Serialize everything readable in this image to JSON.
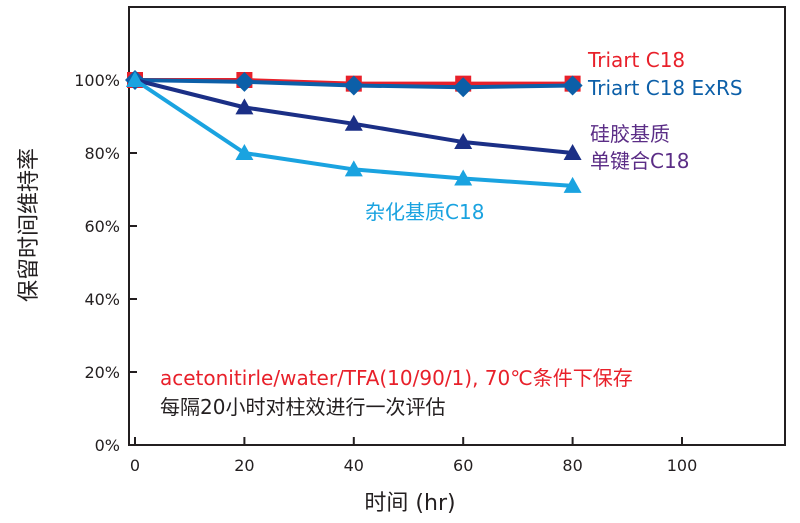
{
  "chart_data": {
    "type": "line",
    "title": "",
    "xlabel": "时间 (hr)",
    "ylabel": "保留时间维持率",
    "xlim": [
      0,
      120
    ],
    "ylim": [
      0,
      120
    ],
    "xticks": [
      0,
      20,
      40,
      60,
      80,
      100
    ],
    "xtick_labels": [
      "0",
      "20",
      "40",
      "60",
      "80",
      "100"
    ],
    "yticks": [
      0,
      20,
      40,
      60,
      80,
      100
    ],
    "ytick_labels": [
      "0%",
      "20%",
      "40%",
      "60%",
      "80%",
      "100%"
    ],
    "grid": false,
    "series": [
      {
        "name": "Triart C18",
        "label_lines": [
          "Triart C18"
        ],
        "color": "#e8202a",
        "marker": "square",
        "x": [
          0,
          20,
          40,
          60,
          80
        ],
        "values": [
          100,
          100,
          99,
          99,
          99
        ]
      },
      {
        "name": "Triart C18 ExRS",
        "label_lines": [
          "Triart C18 ExRS"
        ],
        "color": "#0c5fa8",
        "marker": "diamond",
        "x": [
          0,
          20,
          40,
          60,
          80
        ],
        "values": [
          100,
          99.5,
          98.5,
          98,
          98.5
        ]
      },
      {
        "name": "硅胶基质单键合C18",
        "label_lines": [
          "硅胶基质",
          "单键合C18"
        ],
        "color": "#1b2f86",
        "label_color": "#5b2d86",
        "marker": "triangle",
        "x": [
          0,
          20,
          40,
          60,
          80
        ],
        "values": [
          100,
          92.5,
          88,
          83,
          80
        ]
      },
      {
        "name": "杂化基质C18",
        "label_lines": [
          "杂化基质C18"
        ],
        "color": "#1aa3e0",
        "marker": "triangle",
        "x": [
          0,
          20,
          40,
          60,
          80
        ],
        "values": [
          100,
          80,
          75.5,
          73,
          71
        ]
      }
    ],
    "annotations": [
      {
        "text": "acetonitirle/water/TFA(10/90/1), 70℃条件下保存",
        "color": "#e8202a"
      },
      {
        "text": "每隔20小时对柱效进行一次评估",
        "color": "#231f20"
      }
    ]
  }
}
